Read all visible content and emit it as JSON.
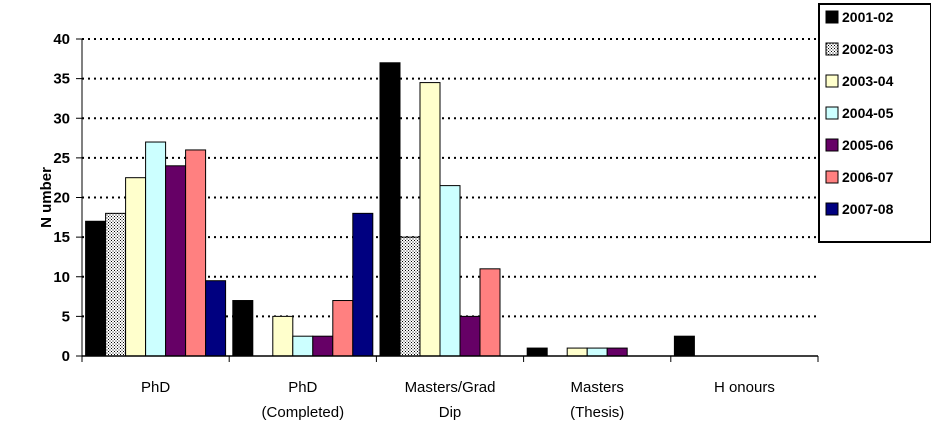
{
  "chart_data": {
    "type": "bar",
    "title": "",
    "xlabel": "",
    "ylabel": "N umber",
    "ylim": [
      0,
      40
    ],
    "yticks": [
      0,
      5,
      10,
      15,
      20,
      25,
      30,
      35,
      40
    ],
    "grid": true,
    "legend_position": "right",
    "categories": [
      [
        "PhD"
      ],
      [
        "PhD",
        "(Completed)"
      ],
      [
        "Masters/Grad",
        "Dip"
      ],
      [
        "Masters",
        "(Thesis)"
      ],
      [
        "H onours"
      ]
    ],
    "series": [
      {
        "name": "2001-02",
        "color": "#000000",
        "values": [
          17,
          7,
          37,
          1,
          2.5
        ]
      },
      {
        "name": "2002-03",
        "color": "#e8e8e8",
        "values": [
          18,
          0,
          15,
          0,
          0
        ]
      },
      {
        "name": "2003-04",
        "color": "#ffffcc",
        "values": [
          22.5,
          5,
          34.5,
          1,
          0
        ]
      },
      {
        "name": "2004-05",
        "color": "#ccffff",
        "values": [
          27,
          2.5,
          21.5,
          1,
          0
        ]
      },
      {
        "name": "2005-06",
        "color": "#660066",
        "values": [
          24,
          2.5,
          5,
          1,
          0
        ]
      },
      {
        "name": "2006-07",
        "color": "#ff8080",
        "values": [
          26,
          7,
          11,
          0,
          0
        ]
      },
      {
        "name": "2007-08",
        "color": "#000080",
        "values": [
          9.5,
          18,
          0,
          0,
          0
        ]
      }
    ]
  }
}
